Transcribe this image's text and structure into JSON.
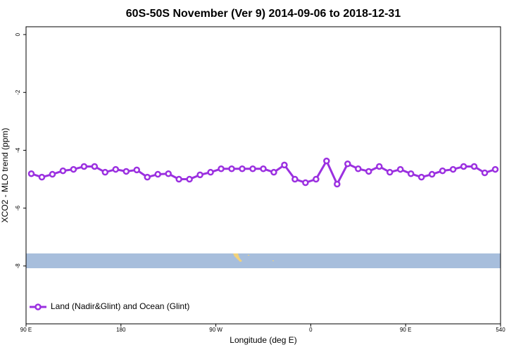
{
  "chart_data": {
    "type": "line",
    "title": "60S-50S November (Ver 9)   2014-09-06 to 2018-12-31",
    "x_label": "Longitude (deg E)",
    "y_label": "XCO2 - MLO trend (ppm)",
    "x": [
      95,
      105,
      115,
      125,
      135,
      145,
      155,
      165,
      175,
      185,
      195,
      205,
      215,
      225,
      235,
      245,
      255,
      265,
      275,
      285,
      295,
      305,
      315,
      325,
      335,
      345,
      355,
      365,
      375,
      385,
      395,
      405,
      415,
      425,
      435,
      445,
      455,
      465,
      475,
      485,
      495,
      505,
      515,
      525,
      535
    ],
    "series": [
      {
        "name": "Land (Nadir&Glint) and Ocean (Glint)",
        "color": "#9b30e0",
        "values": [
          -4.81,
          -4.93,
          -4.83,
          -4.71,
          -4.66,
          -4.56,
          -4.56,
          -4.76,
          -4.66,
          -4.73,
          -4.68,
          -4.93,
          -4.83,
          -4.81,
          -5.0,
          -5.0,
          -4.85,
          -4.76,
          -4.64,
          -4.64,
          -4.64,
          -4.64,
          -4.64,
          -4.76,
          -4.51,
          -5.0,
          -5.12,
          -5.0,
          -4.37,
          -5.17,
          -4.47,
          -4.64,
          -4.73,
          -4.56,
          -4.76,
          -4.66,
          -4.81,
          -4.93,
          -4.83,
          -4.71,
          -4.66,
          -4.56,
          -4.56,
          -4.78,
          -4.66
        ]
      }
    ],
    "xlim": [
      90,
      540
    ],
    "xticks": [
      {
        "value": 90,
        "label": "90 E"
      },
      180,
      {
        "value": 270,
        "label": "90 W"
      },
      {
        "value": 360,
        "label": "0"
      },
      {
        "value": 450,
        "label": "90 E"
      },
      540
    ],
    "ylim": [
      -10,
      0.27
    ],
    "yticks": [
      0,
      -2,
      -4,
      -6,
      -8
    ],
    "legend": "bottom-left"
  }
}
